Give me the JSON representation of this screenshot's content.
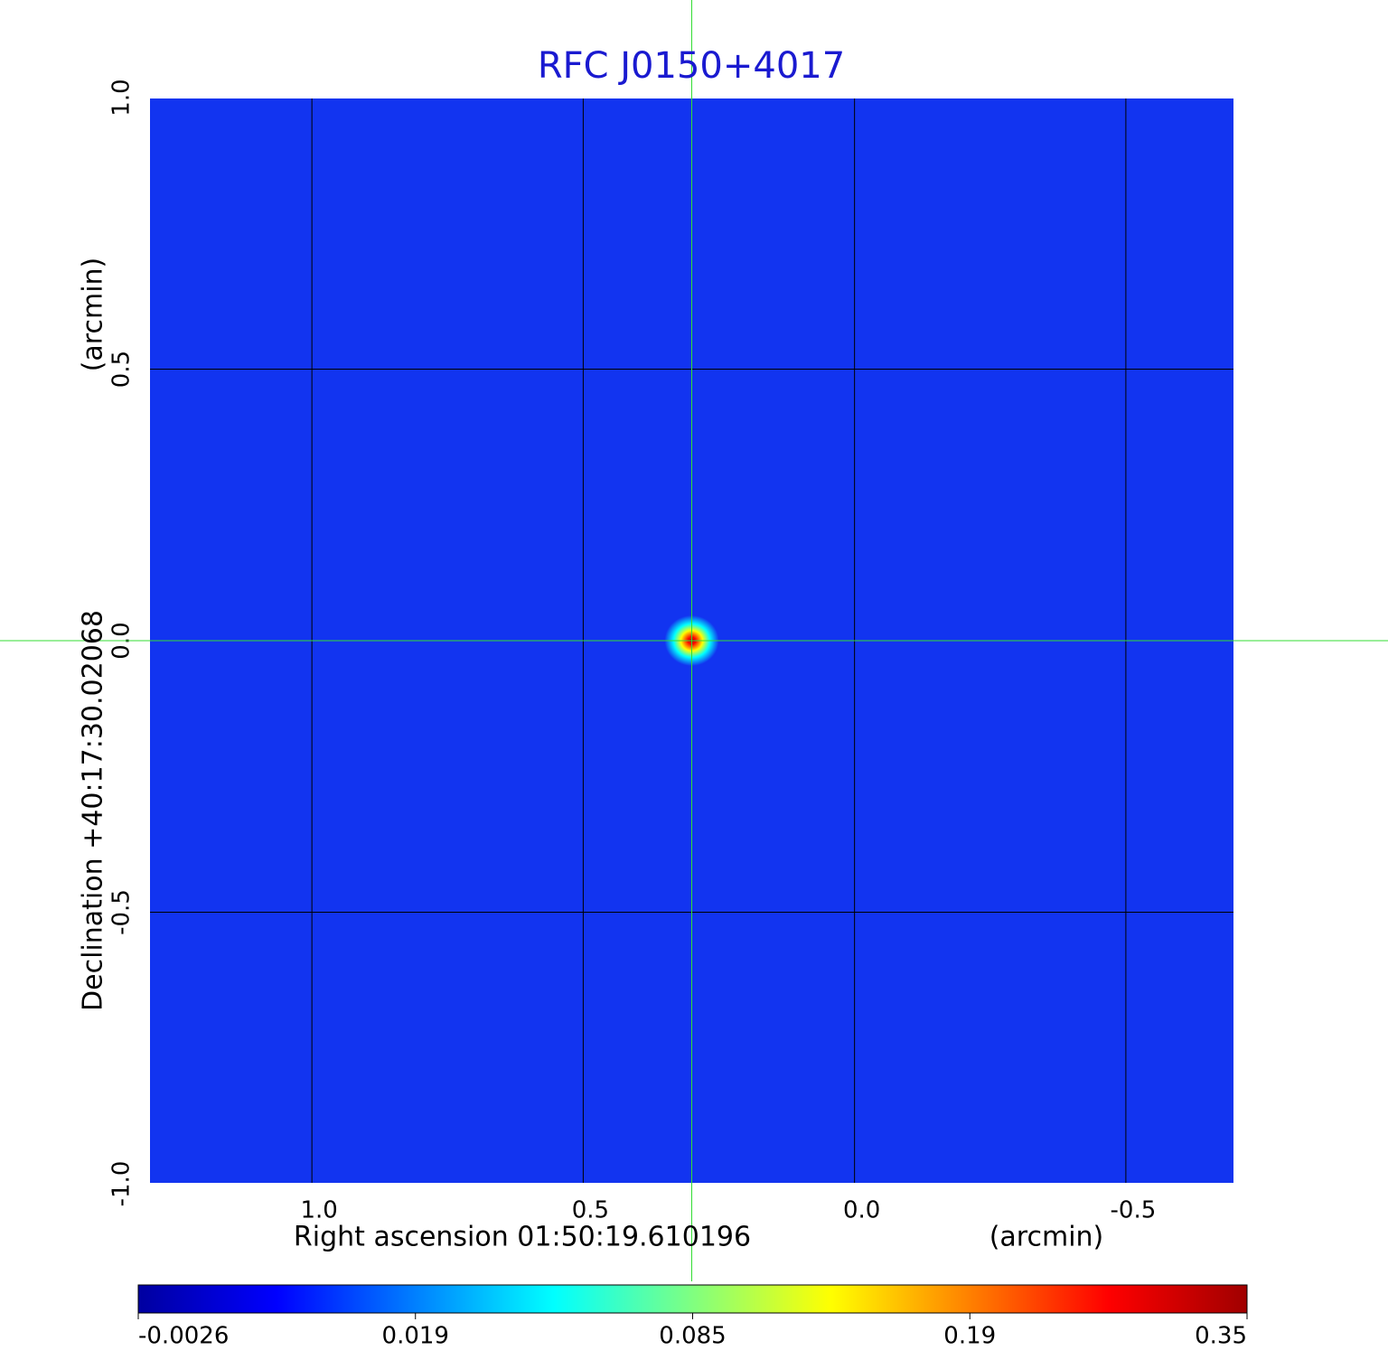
{
  "chart_data": {
    "type": "image",
    "title": "RFC J0150+4017",
    "x_label": "Right ascension  01:50:19.610196",
    "x_unit": "(arcmin)",
    "y_label": "Declination  +40:17:30.02068",
    "y_unit": "(arcmin)",
    "xlim": [
      1.3,
      -0.7
    ],
    "ylim": [
      -1.0,
      1.0
    ],
    "xticks": [
      {
        "value": 1,
        "label": "1.0"
      },
      0.5,
      {
        "value": 0,
        "label": "0.0"
      },
      -0.5
    ],
    "yticks": [
      {
        "value": -1,
        "label": "-1.0"
      },
      -0.5,
      {
        "value": 0,
        "label": "0.0"
      },
      0.5,
      {
        "value": 1,
        "label": "1.0"
      }
    ],
    "grid": true,
    "grid_color": "#000000",
    "background_color": "#1234f0",
    "source": {
      "x": 0.3,
      "y": 0,
      "peak": 0.35
    },
    "crosshair": {
      "x": 0.3,
      "y": 0,
      "color": "#33dd33"
    },
    "title_color": "#1a1ad0",
    "colorbar": {
      "ticks": [
        -0.0026,
        0.019,
        0.085,
        0.19,
        0.35
      ],
      "colormap": [
        "#0000a0",
        "#0000ff",
        "#0080ff",
        "#00ffff",
        "#80ff80",
        "#ffff00",
        "#ff8000",
        "#ff0000",
        "#a00000"
      ]
    }
  }
}
